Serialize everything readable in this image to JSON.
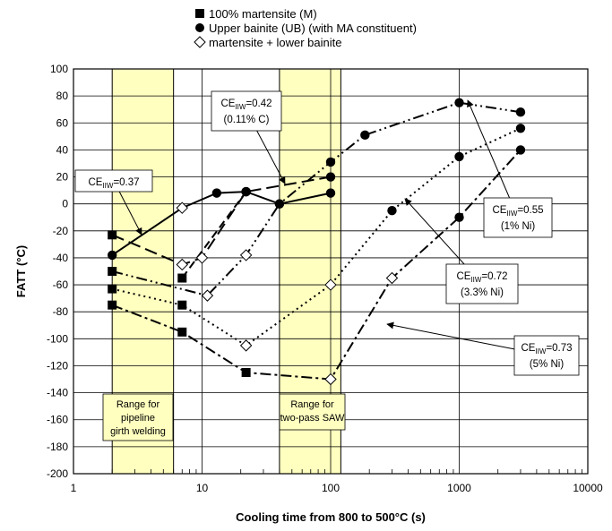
{
  "chart_data": {
    "type": "scatter",
    "x_scale": "log",
    "xlim": [
      1,
      10000
    ],
    "ylim": [
      -200,
      100
    ],
    "y_step": 20,
    "grid": true,
    "xlabel": "Cooling time from 800 to 500°C (s)",
    "ylabel": "FATT (°C)",
    "x_ticks": [
      "1",
      "10",
      "100",
      "1000",
      "10000"
    ],
    "y_ticks": [
      "100",
      "80",
      "60",
      "40",
      "20",
      "0",
      "-20",
      "-40",
      "-60",
      "-80",
      "-100",
      "-120",
      "-140",
      "-160",
      "-180",
      "-200"
    ],
    "legend": {
      "placement": "top",
      "items": [
        {
          "marker": "square",
          "label": "100% martensite (M)"
        },
        {
          "marker": "circle",
          "label": "Upper bainite (UB) (with MA constituent)"
        },
        {
          "marker": "diamond",
          "label": "martensite + lower bainite"
        }
      ]
    },
    "bands": [
      {
        "x_range": [
          2,
          6
        ],
        "label_lines": [
          "Range for",
          "pipeline",
          "girth welding"
        ],
        "color": "#ffffc0"
      },
      {
        "x_range": [
          40,
          120
        ],
        "label_lines": [
          "Range for",
          "two-pass SAW"
        ],
        "color": "#ffffc0"
      }
    ],
    "series": [
      {
        "label_lines": [
          {
            "text": "CE",
            "sub": "IIW",
            "rest": "=0.37"
          }
        ],
        "dash": "solid",
        "points": [
          [
            2,
            -38,
            "circle"
          ],
          [
            7,
            -3,
            "diamond"
          ],
          [
            13,
            8,
            "circle"
          ],
          [
            22,
            9,
            "circle"
          ],
          [
            40,
            0,
            "circle"
          ],
          [
            100,
            8,
            "circle"
          ]
        ]
      },
      {
        "label_lines": [
          {
            "text": "CE",
            "sub": "IIW",
            "rest": "=0.42"
          },
          {
            "text": "(0.11% C)"
          }
        ],
        "dash": "long-dash",
        "points": [
          [
            2,
            -23,
            "square"
          ],
          [
            7,
            -45,
            "diamond"
          ],
          [
            10,
            -40,
            "diamond"
          ],
          [
            22,
            9,
            "circle"
          ],
          [
            100,
            20,
            "circle"
          ]
        ]
      },
      {
        "label_lines": [
          {
            "text": "CE",
            "sub": "IIW",
            "rest": "=0.55"
          },
          {
            "text": "(1% Ni)"
          }
        ],
        "dash": "dash-dot-dot",
        "points": [
          [
            2,
            -50,
            "square"
          ],
          [
            11,
            -68,
            "diamond"
          ],
          [
            22,
            -38,
            "diamond"
          ],
          [
            40,
            0,
            "circle"
          ],
          [
            100,
            31,
            "circle"
          ],
          [
            185,
            51,
            "circle"
          ],
          [
            1000,
            75,
            "circle"
          ],
          [
            3000,
            68,
            "circle"
          ]
        ]
      },
      {
        "label_lines": [
          {
            "text": "CE",
            "sub": "IIW",
            "rest": "=0.72"
          },
          {
            "text": "(3.3% Ni)"
          }
        ],
        "dash": "dotted",
        "points": [
          [
            2,
            -63,
            "square"
          ],
          [
            7,
            -75,
            "square"
          ],
          [
            22,
            -105,
            "diamond"
          ],
          [
            100,
            -60,
            "diamond"
          ],
          [
            300,
            -5,
            "circle"
          ],
          [
            1000,
            35,
            "circle"
          ],
          [
            3000,
            56,
            "circle"
          ]
        ]
      },
      {
        "label_lines": [
          {
            "text": "CE",
            "sub": "IIW",
            "rest": "=0.73"
          },
          {
            "text": "(5% Ni)"
          }
        ],
        "dash": "dash-dot",
        "points": [
          [
            2,
            -75,
            "square"
          ],
          [
            7,
            -95,
            "square"
          ],
          [
            22,
            -125,
            "square"
          ],
          [
            100,
            -130,
            "diamond"
          ],
          [
            300,
            -55,
            "diamond"
          ],
          [
            1000,
            -10,
            "circle"
          ],
          [
            3000,
            40,
            "circle"
          ]
        ]
      },
      {
        "label_lines": [],
        "dash": "dash",
        "points": [
          [
            7,
            -55,
            "square"
          ],
          [
            22,
            9,
            "circle"
          ]
        ]
      }
    ]
  }
}
